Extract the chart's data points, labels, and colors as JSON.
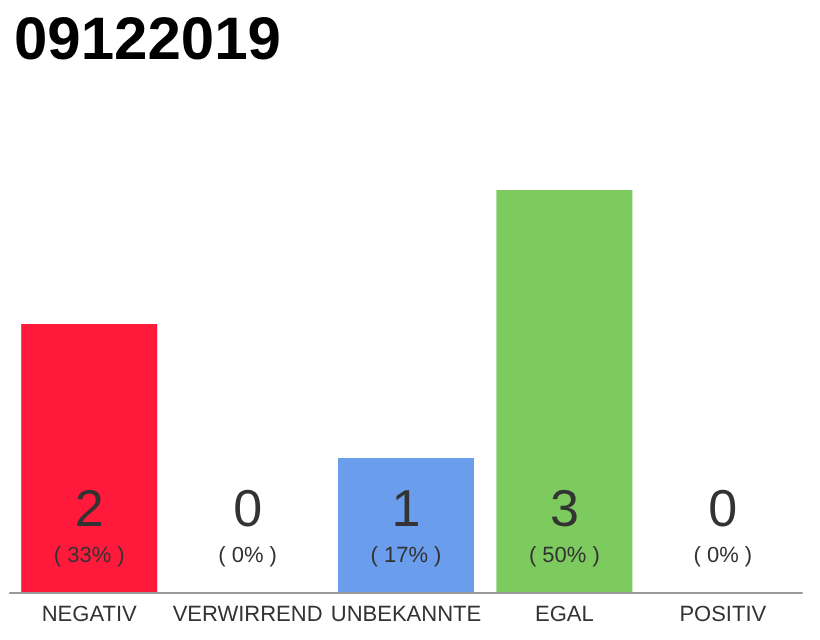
{
  "chart_data": {
    "type": "bar",
    "title": "09122019",
    "categories": [
      "NEGATIV",
      "VERWIRREND",
      "UNBEKANNTE",
      "EGAL",
      "POSITIV"
    ],
    "values": [
      2,
      0,
      1,
      3,
      0
    ],
    "colors": [
      "#ff1a3c",
      null,
      "#6b9ded",
      "#7dcb5e",
      null
    ],
    "value_labels": [
      "2\n( 33% )",
      "0\n( 0% )",
      "1\n( 17% )",
      "3\n( 50% )",
      "0\n( 0% )"
    ],
    "ylim": [
      0,
      3
    ]
  }
}
